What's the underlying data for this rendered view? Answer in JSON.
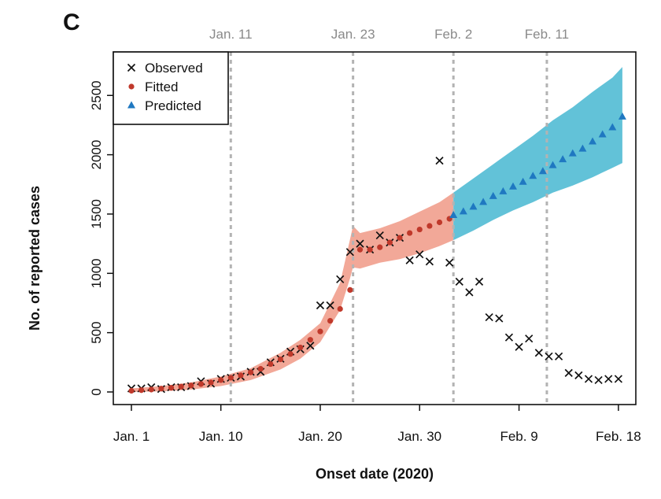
{
  "panel_label": "C",
  "colors": {
    "observed": "#111111",
    "fitted": "#c0392b",
    "fitted_band": "#f2a898",
    "predicted": "#1f78c1",
    "predicted_band": "#62c2d8",
    "event_line": "#b3b3b3",
    "event_text": "#8a8a8a"
  },
  "chart_data": {
    "type": "scatter",
    "title": "",
    "xlabel": "Onset date (2020)",
    "ylabel": "No. of reported cases",
    "xlim": [
      0,
      50
    ],
    "ylim": [
      0,
      2750
    ],
    "x_tick_values": [
      0,
      9,
      19,
      29,
      39,
      49
    ],
    "x_tick_labels": [
      "Jan. 1",
      "Jan. 10",
      "Jan. 20",
      "Jan. 30",
      "Feb. 9",
      "Feb. 18"
    ],
    "y_ticks": [
      0,
      500,
      1000,
      1500,
      2000,
      2500
    ],
    "event_lines": [
      {
        "x": 10,
        "label": "Jan. 11"
      },
      {
        "x": 22.3,
        "label": "Jan. 23"
      },
      {
        "x": 32.4,
        "label": "Feb. 2"
      },
      {
        "x": 41.8,
        "label": "Feb. 11"
      }
    ],
    "legend": {
      "position": "top-left",
      "entries": [
        {
          "label": "Observed",
          "marker": "cross"
        },
        {
          "label": "Fitted",
          "marker": "circle"
        },
        {
          "label": "Predicted",
          "marker": "triangle"
        }
      ]
    },
    "series": [
      {
        "name": "Observed",
        "marker": "cross",
        "x": [
          0,
          1,
          2,
          3,
          4,
          5,
          6,
          7,
          8,
          9,
          10,
          11,
          12,
          13,
          14,
          15,
          16,
          17,
          18,
          19,
          20,
          21,
          22,
          23,
          24,
          25,
          26,
          27,
          28,
          29,
          30,
          31,
          32,
          33,
          34,
          35,
          36,
          37,
          38,
          39,
          40,
          41,
          42,
          43,
          44,
          45,
          46,
          47,
          48,
          49
        ],
        "y": [
          30,
          30,
          40,
          25,
          40,
          40,
          50,
          90,
          70,
          110,
          120,
          130,
          170,
          170,
          250,
          280,
          340,
          360,
          390,
          730,
          730,
          950,
          1180,
          1250,
          1200,
          1320,
          1260,
          1300,
          1110,
          1160,
          1100,
          1950,
          1090,
          930,
          840,
          930,
          630,
          620,
          460,
          380,
          450,
          330,
          300,
          300,
          160,
          140,
          110,
          100,
          110,
          110
        ]
      },
      {
        "name": "Fitted",
        "marker": "circle",
        "x": [
          0,
          1,
          2,
          3,
          4,
          5,
          6,
          7,
          8,
          9,
          10,
          11,
          12,
          13,
          14,
          15,
          16,
          17,
          18,
          19,
          20,
          21,
          22,
          23,
          24,
          25,
          26,
          27,
          28,
          29,
          30,
          31,
          32
        ],
        "y": [
          10,
          15,
          20,
          28,
          35,
          45,
          55,
          67,
          80,
          100,
          120,
          140,
          165,
          195,
          235,
          275,
          320,
          375,
          440,
          510,
          600,
          700,
          860,
          1200,
          1200,
          1220,
          1260,
          1300,
          1340,
          1370,
          1400,
          1430,
          1460
        ]
      },
      {
        "name": "Predicted",
        "marker": "triangle",
        "x": [
          32.4,
          33.4,
          34.4,
          35.4,
          36.4,
          37.4,
          38.4,
          39.4,
          40.4,
          41.4,
          42.4,
          43.4,
          44.4,
          45.4,
          46.4,
          47.4,
          48.4,
          49.4
        ],
        "y": [
          1490,
          1520,
          1560,
          1600,
          1650,
          1690,
          1730,
          1770,
          1820,
          1860,
          1910,
          1960,
          2010,
          2050,
          2110,
          2170,
          2230,
          2320
        ]
      }
    ],
    "bands": [
      {
        "name": "Fitted interval",
        "x": [
          0,
          3,
          6,
          9,
          12,
          15,
          17,
          19,
          21,
          22,
          22.3,
          23,
          25,
          27,
          29,
          31,
          32.4
        ],
        "lower": [
          0,
          5,
          20,
          50,
          100,
          190,
          280,
          420,
          690,
          960,
          1050,
          1040,
          1090,
          1120,
          1170,
          1230,
          1280
        ],
        "upper": [
          30,
          50,
          80,
          130,
          200,
          330,
          440,
          580,
          920,
          1290,
          1400,
          1340,
          1380,
          1440,
          1520,
          1600,
          1680
        ]
      },
      {
        "name": "Predicted interval",
        "x": [
          32.4,
          34.4,
          36.4,
          38.4,
          40.4,
          42.4,
          44.4,
          46.4,
          48.4,
          49.4
        ],
        "lower": [
          1280,
          1360,
          1450,
          1530,
          1600,
          1680,
          1740,
          1810,
          1890,
          1930
        ],
        "upper": [
          1680,
          1800,
          1920,
          2040,
          2160,
          2290,
          2400,
          2530,
          2650,
          2740
        ]
      }
    ]
  }
}
